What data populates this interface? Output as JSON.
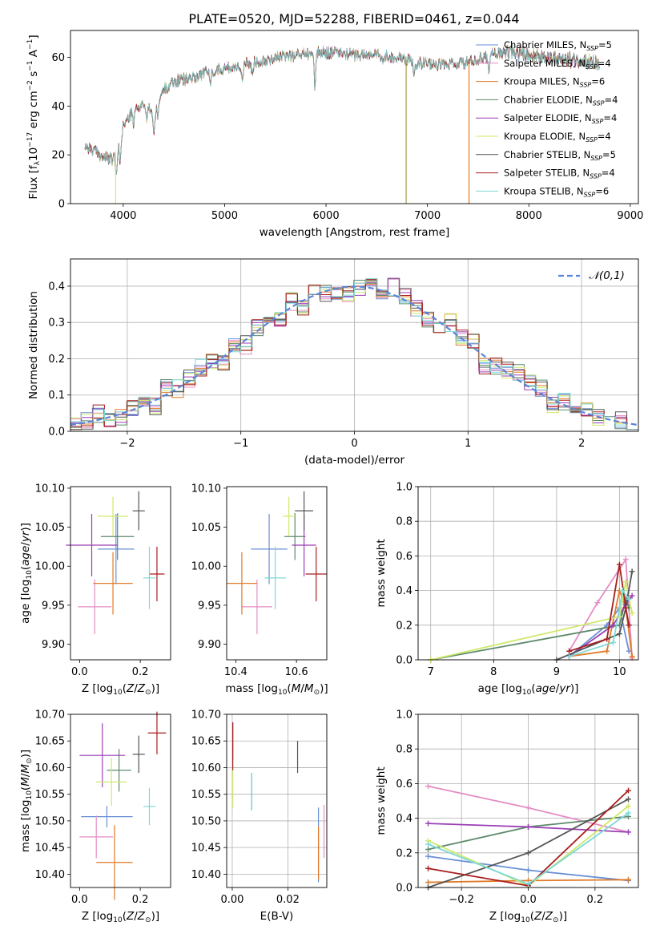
{
  "figure": {
    "title": "PLATE=0520, MJD=52288, FIBERID=0461, z=0.044"
  },
  "models": [
    {
      "name": "Chabrier MILES",
      "nssp": "5",
      "color": "#6a8fd6"
    },
    {
      "name": "Salpeter MILES",
      "nssp": "4",
      "color": "#e48ec4"
    },
    {
      "name": "Kroupa MILES",
      "nssp": "6",
      "color": "#e07a28"
    },
    {
      "name": "Chabrier ELODIE",
      "nssp": "4",
      "color": "#5d8a6b"
    },
    {
      "name": "Salpeter ELODIE",
      "nssp": "4",
      "color": "#9a3fb5"
    },
    {
      "name": "Kroupa ELODIE",
      "nssp": "4",
      "color": "#cfe96a"
    },
    {
      "name": "Chabrier STELIB",
      "nssp": "5",
      "color": "#555555"
    },
    {
      "name": "Salpeter STELIB",
      "nssp": "4",
      "color": "#a81e1e"
    },
    {
      "name": "Kroupa STELIB",
      "nssp": "6",
      "color": "#7fd8d8"
    }
  ],
  "chart_data": [
    {
      "id": "spectrum",
      "type": "line",
      "xlabel": "wavelength [Angstrom, rest frame]",
      "ylabel": "Flux [f_λ10^-17 erg cm^-2 s^-1 A^-1]",
      "xlim": [
        3480,
        9080
      ],
      "ylim": [
        0,
        71
      ],
      "xticks": [
        4000,
        5000,
        6000,
        7000,
        8000,
        9000
      ],
      "yticks": [
        0,
        20,
        40,
        60
      ],
      "grid": false,
      "legend": "upper right",
      "continuum": {
        "x": [
          3620,
          3700,
          3800,
          3900,
          4000,
          4100,
          4200,
          4300,
          4400,
          4500,
          4700,
          4900,
          5100,
          5300,
          5500,
          5700,
          5900,
          6100,
          6300,
          6500,
          6700,
          6900,
          7100,
          7300,
          7500,
          7700,
          7800,
          8000,
          8200,
          8400,
          8600,
          8700
        ],
        "y": [
          24,
          22,
          19,
          18,
          32,
          38,
          41,
          38,
          47,
          50,
          52,
          55,
          56,
          58,
          60,
          61,
          62,
          62,
          61,
          61,
          60,
          58,
          57,
          57,
          59,
          62,
          62,
          61,
          60,
          59,
          58,
          58
        ]
      },
      "absorption": [
        {
          "x": 3934,
          "depth": 12
        },
        {
          "x": 3969,
          "depth": 10
        },
        {
          "x": 4102,
          "depth": 6
        },
        {
          "x": 4227,
          "depth": 6
        },
        {
          "x": 4304,
          "depth": 10
        },
        {
          "x": 4340,
          "depth": 6
        },
        {
          "x": 4861,
          "depth": 5
        },
        {
          "x": 5175,
          "depth": 7
        },
        {
          "x": 5270,
          "depth": 4
        },
        {
          "x": 5890,
          "depth": 14
        },
        {
          "x": 6563,
          "depth": 3
        },
        {
          "x": 6870,
          "depth": 4
        },
        {
          "x": 7605,
          "depth": 5
        }
      ],
      "spikes": [
        {
          "x": 3925,
          "color": "#cfe96a"
        },
        {
          "x": 6790,
          "color": "#a8a04a"
        },
        {
          "x": 7410,
          "color": "#e07a28"
        }
      ]
    },
    {
      "id": "residuals",
      "type": "line",
      "xlabel": "(data-model)/error",
      "ylabel": "Normed distribution",
      "xlim": [
        -2.5,
        2.5
      ],
      "ylim": [
        0,
        0.475
      ],
      "xticks": [
        -2,
        -1,
        0,
        1,
        2
      ],
      "yticks": [
        0.0,
        0.1,
        0.2,
        0.3,
        0.4
      ],
      "grid": true,
      "legend": "upper right",
      "reference_label": "𝒩(0,1)",
      "bin_width": 0.1,
      "bin_start": -2.5
    },
    {
      "id": "age-z",
      "type": "scatter",
      "xlabel": "Z [log10(Z/Z⊙)]",
      "ylabel": "age  [log10(age/yr)]",
      "xlim": [
        -0.03,
        0.3
      ],
      "ylim": [
        9.88,
        10.102
      ],
      "xticks": [
        0.0,
        0.2
      ],
      "yticks": [
        9.9,
        9.95,
        10.0,
        10.05,
        10.1
      ],
      "grid": false,
      "points": [
        {
          "x": 0.12,
          "y": 10.022,
          "xerr": 0.06,
          "yerr": 0.045
        },
        {
          "x": 0.05,
          "y": 9.948,
          "xerr": 0.055,
          "yerr": 0.035
        },
        {
          "x": 0.11,
          "y": 9.978,
          "xerr": 0.065,
          "yerr": 0.04
        },
        {
          "x": 0.125,
          "y": 10.038,
          "xerr": 0.055,
          "yerr": 0.03
        },
        {
          "x": 0.04,
          "y": 10.027,
          "xerr": 0.085,
          "yerr": 0.04
        },
        {
          "x": 0.11,
          "y": 10.064,
          "xerr": 0.05,
          "yerr": 0.025
        },
        {
          "x": 0.195,
          "y": 10.071,
          "xerr": 0.02,
          "yerr": 0.025
        },
        {
          "x": 0.255,
          "y": 9.99,
          "xerr": 0.025,
          "yerr": 0.035
        },
        {
          "x": 0.23,
          "y": 9.985,
          "xerr": 0.02,
          "yerr": 0.04
        }
      ]
    },
    {
      "id": "age-mass",
      "type": "scatter",
      "xlabel": "mass [log10(M/M⊙)]",
      "ylabel": "",
      "xlim": [
        10.37,
        10.7
      ],
      "ylim": [
        9.88,
        10.102
      ],
      "xticks": [
        10.4,
        10.6
      ],
      "yticks": [
        9.9,
        9.95,
        10.0,
        10.05,
        10.1
      ],
      "grid": false,
      "points": [
        {
          "x": 10.51,
          "y": 10.022,
          "xerr": 0.06,
          "yerr": 0.045
        },
        {
          "x": 10.47,
          "y": 9.948,
          "xerr": 0.05,
          "yerr": 0.035
        },
        {
          "x": 10.42,
          "y": 9.978,
          "xerr": 0.05,
          "yerr": 0.04
        },
        {
          "x": 10.595,
          "y": 10.038,
          "xerr": 0.035,
          "yerr": 0.03
        },
        {
          "x": 10.625,
          "y": 10.027,
          "xerr": 0.04,
          "yerr": 0.04
        },
        {
          "x": 10.575,
          "y": 10.064,
          "xerr": 0.02,
          "yerr": 0.025
        },
        {
          "x": 10.625,
          "y": 10.071,
          "xerr": 0.03,
          "yerr": 0.025
        },
        {
          "x": 10.665,
          "y": 9.99,
          "xerr": 0.035,
          "yerr": 0.035
        },
        {
          "x": 10.53,
          "y": 9.985,
          "xerr": 0.035,
          "yerr": 0.04
        }
      ]
    },
    {
      "id": "weight-age",
      "type": "line",
      "xlabel": "age  [log10(age/yr)]",
      "ylabel": "mass weight",
      "xlim": [
        6.8,
        10.3
      ],
      "ylim": [
        0,
        1.0
      ],
      "xticks": [
        7,
        8,
        9,
        10
      ],
      "yticks": [
        0.0,
        0.2,
        0.4,
        0.6,
        0.8,
        1.0
      ],
      "grid": true,
      "series": [
        {
          "points": [
            [
              9.2,
              0.02
            ],
            [
              9.8,
              0.2
            ],
            [
              10.0,
              0.3
            ],
            [
              10.15,
              0.05
            ]
          ]
        },
        {
          "points": [
            [
              9.2,
              0.05
            ],
            [
              9.65,
              0.33
            ],
            [
              10.1,
              0.58
            ],
            [
              10.2,
              0.01
            ]
          ]
        },
        {
          "points": [
            [
              9.2,
              0.02
            ],
            [
              9.8,
              0.05
            ],
            [
              10.0,
              0.4
            ],
            [
              10.1,
              0.3
            ],
            [
              10.2,
              0.02
            ]
          ]
        },
        {
          "points": [
            [
              7.0,
              0.0
            ],
            [
              10.0,
              0.2
            ],
            [
              10.1,
              0.35
            ],
            [
              10.15,
              0.3
            ]
          ]
        },
        {
          "points": [
            [
              9.2,
              0.02
            ],
            [
              9.9,
              0.2
            ],
            [
              10.1,
              0.32
            ],
            [
              10.2,
              0.37
            ]
          ]
        },
        {
          "points": [
            [
              7.0,
              0.0
            ],
            [
              10.0,
              0.25
            ],
            [
              10.1,
              0.45
            ],
            [
              10.2,
              0.27
            ]
          ]
        },
        {
          "points": [
            [
              9.0,
              0.0
            ],
            [
              10.0,
              0.15
            ],
            [
              10.1,
              0.3
            ],
            [
              10.2,
              0.51
            ]
          ]
        },
        {
          "points": [
            [
              9.2,
              0.05
            ],
            [
              9.8,
              0.12
            ],
            [
              10.0,
              0.55
            ],
            [
              10.1,
              0.3
            ],
            [
              10.15,
              0.2
            ]
          ]
        },
        {
          "points": [
            [
              9.2,
              0.02
            ],
            [
              9.9,
              0.1
            ],
            [
              10.05,
              0.4
            ],
            [
              10.15,
              0.35
            ]
          ]
        }
      ]
    },
    {
      "id": "mass-z",
      "type": "scatter",
      "xlabel": "Z [log10(Z/Z⊙)]",
      "ylabel": "mass [log10(M/M⊙)]",
      "xlim": [
        -0.03,
        0.3
      ],
      "ylim": [
        10.375,
        10.7
      ],
      "xticks": [
        0.0,
        0.2
      ],
      "yticks": [
        10.4,
        10.45,
        10.5,
        10.55,
        10.6,
        10.65,
        10.7
      ],
      "grid": false,
      "points": [
        {
          "x": 0.09,
          "y": 10.508,
          "xerr": 0.085,
          "yerr": 0.02
        },
        {
          "x": 0.055,
          "y": 10.47,
          "xerr": 0.055,
          "yerr": 0.04
        },
        {
          "x": 0.115,
          "y": 10.422,
          "xerr": 0.06,
          "yerr": 0.07
        },
        {
          "x": 0.13,
          "y": 10.595,
          "xerr": 0.04,
          "yerr": 0.04
        },
        {
          "x": 0.075,
          "y": 10.623,
          "xerr": 0.075,
          "yerr": 0.06
        },
        {
          "x": 0.105,
          "y": 10.573,
          "xerr": 0.05,
          "yerr": 0.045
        },
        {
          "x": 0.195,
          "y": 10.625,
          "xerr": 0.02,
          "yerr": 0.035
        },
        {
          "x": 0.255,
          "y": 10.665,
          "xerr": 0.03,
          "yerr": 0.04
        },
        {
          "x": 0.23,
          "y": 10.527,
          "xerr": 0.02,
          "yerr": 0.035
        }
      ]
    },
    {
      "id": "mass-ebv",
      "type": "scatter",
      "xlabel": "E(B-V)",
      "ylabel": "",
      "xlim": [
        -0.002,
        0.034
      ],
      "ylim": [
        10.375,
        10.7
      ],
      "xticks": [
        0.0,
        0.02
      ],
      "yticks": [
        10.4,
        10.45,
        10.5,
        10.55,
        10.6,
        10.65,
        10.7
      ],
      "grid": true,
      "points": [
        {
          "x": 0.031,
          "y": 10.455,
          "xerr": 0,
          "yerr": 0.07
        },
        {
          "x": 0.033,
          "y": 10.48,
          "xerr": 0,
          "yerr": 0.05
        },
        {
          "x": 0.031,
          "y": 10.44,
          "xerr": 0,
          "yerr": 0.05
        },
        {
          "x": 0.007,
          "y": 10.555,
          "xerr": 0,
          "yerr": 0.035
        },
        {
          "x": 0.0002,
          "y": 10.65,
          "xerr": 0,
          "yerr": 0.035
        },
        {
          "x": 0.0002,
          "y": 10.56,
          "xerr": 0,
          "yerr": 0.035
        },
        {
          "x": 0.0235,
          "y": 10.62,
          "xerr": 0,
          "yerr": 0.03
        },
        {
          "x": 0.0002,
          "y": 10.64,
          "xerr": 0,
          "yerr": 0.045
        },
        {
          "x": 0.007,
          "y": 10.555,
          "xerr": 0,
          "yerr": 0.035
        }
      ]
    },
    {
      "id": "weight-z",
      "type": "line",
      "xlabel": "Z [log10(Z/Z⊙)]",
      "ylabel": "mass weight",
      "xlim": [
        -0.33,
        0.33
      ],
      "ylim": [
        0,
        1.0
      ],
      "xticks": [
        -0.2,
        0.0,
        0.2
      ],
      "yticks": [
        0.0,
        0.2,
        0.4,
        0.6,
        0.8,
        1.0
      ],
      "grid": true,
      "series": [
        {
          "points": [
            [
              -0.3,
              0.18
            ],
            [
              0.0,
              0.1
            ],
            [
              0.3,
              0.04
            ]
          ]
        },
        {
          "points": [
            [
              -0.3,
              0.585
            ],
            [
              0.0,
              0.46
            ],
            [
              0.3,
              0.32
            ]
          ]
        },
        {
          "points": [
            [
              -0.3,
              0.03
            ],
            [
              0.0,
              0.04
            ],
            [
              0.3,
              0.045
            ]
          ]
        },
        {
          "points": [
            [
              -0.3,
              0.22
            ],
            [
              0.0,
              0.35
            ],
            [
              0.3,
              0.41
            ]
          ]
        },
        {
          "points": [
            [
              -0.3,
              0.37
            ],
            [
              0.0,
              0.35
            ],
            [
              0.3,
              0.32
            ]
          ]
        },
        {
          "points": [
            [
              -0.3,
              0.27
            ],
            [
              0.0,
              0.01
            ],
            [
              0.3,
              0.47
            ]
          ]
        },
        {
          "points": [
            [
              -0.3,
              0.0
            ],
            [
              0.0,
              0.2
            ],
            [
              0.3,
              0.51
            ]
          ]
        },
        {
          "points": [
            [
              -0.3,
              0.11
            ],
            [
              0.0,
              0.01
            ],
            [
              0.3,
              0.56
            ]
          ]
        },
        {
          "points": [
            [
              -0.3,
              0.25
            ],
            [
              0.0,
              0.02
            ],
            [
              0.3,
              0.43
            ]
          ]
        }
      ]
    }
  ]
}
